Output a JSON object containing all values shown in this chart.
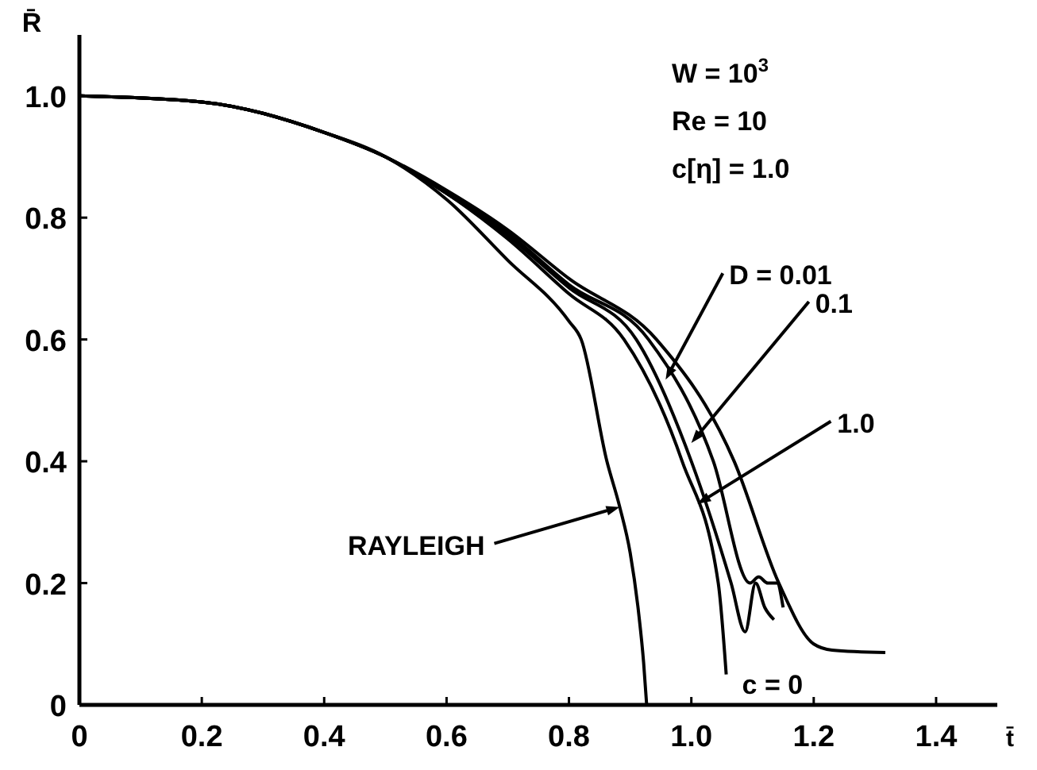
{
  "chart_data": {
    "type": "line",
    "xlabel": "t̄",
    "ylabel": "R̄",
    "xlim": [
      0,
      1.5
    ],
    "ylim": [
      0,
      1.1
    ],
    "xticks": [
      0,
      0.2,
      0.4,
      0.6,
      0.8,
      {
        "value": 1,
        "label": "1.0"
      },
      {
        "value": 1.2,
        "label": "1.2"
      },
      {
        "value": 1.4,
        "label": "1.4"
      }
    ],
    "yticks": [
      0,
      0.2,
      0.4,
      0.6,
      0.8,
      {
        "value": 1,
        "label": "1.0"
      }
    ],
    "marker": "none",
    "line_style": "solid",
    "series": [
      {
        "color": "#000000",
        "x": [
          0,
          0.2,
          0.4,
          0.5,
          0.6,
          0.7,
          0.8,
          0.82,
          0.862,
          0.883,
          0.9,
          0.914,
          0.922,
          0.927
        ],
        "values": [
          1,
          0.99,
          0.94,
          0.9,
          0.83,
          0.73,
          0.63,
          0.6,
          0.4,
          0.325,
          0.25,
          0.15,
          0.07,
          0
        ]
      },
      {
        "color": "#000000",
        "x": [
          0,
          0.2,
          0.4,
          0.5,
          0.6,
          0.7,
          0.8,
          0.89,
          0.985,
          1.044,
          1.057
        ],
        "values": [
          1,
          0.99,
          0.94,
          0.9,
          0.84,
          0.765,
          0.675,
          0.6,
          0.4,
          0.2,
          0.05
        ]
      },
      {
        "color": "#000000",
        "x": [
          0,
          0.2,
          0.4,
          0.5,
          0.6,
          0.7,
          0.8,
          0.91,
          1.0,
          1.065,
          1.088,
          1.105,
          1.12,
          1.135
        ],
        "values": [
          1,
          0.99,
          0.94,
          0.9,
          0.84,
          0.77,
          0.685,
          0.6,
          0.4,
          0.2,
          0.12,
          0.2,
          0.16,
          0.14
        ]
      },
      {
        "color": "#000000",
        "x": [
          0,
          0.2,
          0.4,
          0.5,
          0.6,
          0.7,
          0.8,
          0.93,
          1.036,
          1.096,
          1.11,
          1.125,
          1.14,
          1.15
        ],
        "values": [
          1,
          0.99,
          0.94,
          0.9,
          0.84,
          0.775,
          0.69,
          0.6,
          0.4,
          0.2,
          0.21,
          0.2,
          0.2,
          0.16
        ]
      },
      {
        "color": "#000000",
        "x": [
          0,
          0.2,
          0.4,
          0.5,
          0.6,
          0.7,
          0.8,
          0.943,
          1.07,
          1.143,
          1.2,
          1.23,
          1.317
        ],
        "values": [
          1,
          0.99,
          0.94,
          0.9,
          0.845,
          0.78,
          0.7,
          0.6,
          0.4,
          0.2,
          0.1,
          0.09,
          0.086
        ]
      }
    ],
    "annotations": [
      "W = 10$^{3}$",
      "Re = 10",
      "c[η] = 1.0",
      {
        "text": "RAYLEIGH",
        "x": 0.883,
        "y": 0.325
      },
      {
        "text": "c = 0",
        "x": 1.057,
        "y": 0.05
      },
      {
        "text": "1.0",
        "x": 1.01,
        "y": 0.33
      },
      {
        "text": "0.1",
        "x": 1.0,
        "y": 0.43
      },
      {
        "text": "D = 0.01",
        "x": 0.958,
        "y": 0.534
      }
    ]
  }
}
